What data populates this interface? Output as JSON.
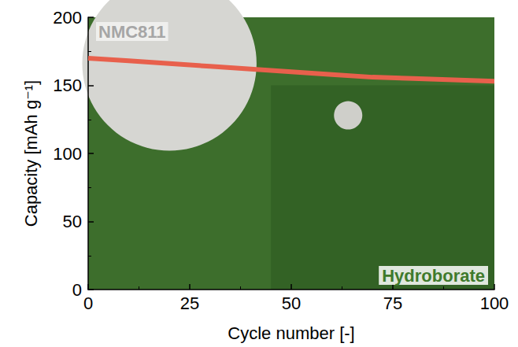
{
  "chart_data": {
    "type": "line",
    "x_label": "Cycle number [-]",
    "y_label": "Capacity [mAh g⁻¹]",
    "x": [
      0,
      10,
      20,
      30,
      40,
      50,
      60,
      70,
      80,
      90,
      100
    ],
    "series": [
      {
        "name": "NMC811",
        "color": "#e8604c",
        "values": [
          170,
          168,
          166,
          164,
          162,
          160,
          158,
          156,
          155,
          154,
          153
        ]
      }
    ],
    "xlim": [
      0,
      100
    ],
    "xticks": [
      0,
      25,
      50,
      75,
      100
    ],
    "ylim": [
      0,
      200
    ],
    "yticks": [
      0,
      50,
      100,
      150,
      200
    ],
    "grid": false,
    "annotations": [
      {
        "text": "NMC811",
        "color": "#a6a6a6"
      },
      {
        "text": "Hydroborate",
        "color": "#3f7a2c"
      }
    ]
  }
}
